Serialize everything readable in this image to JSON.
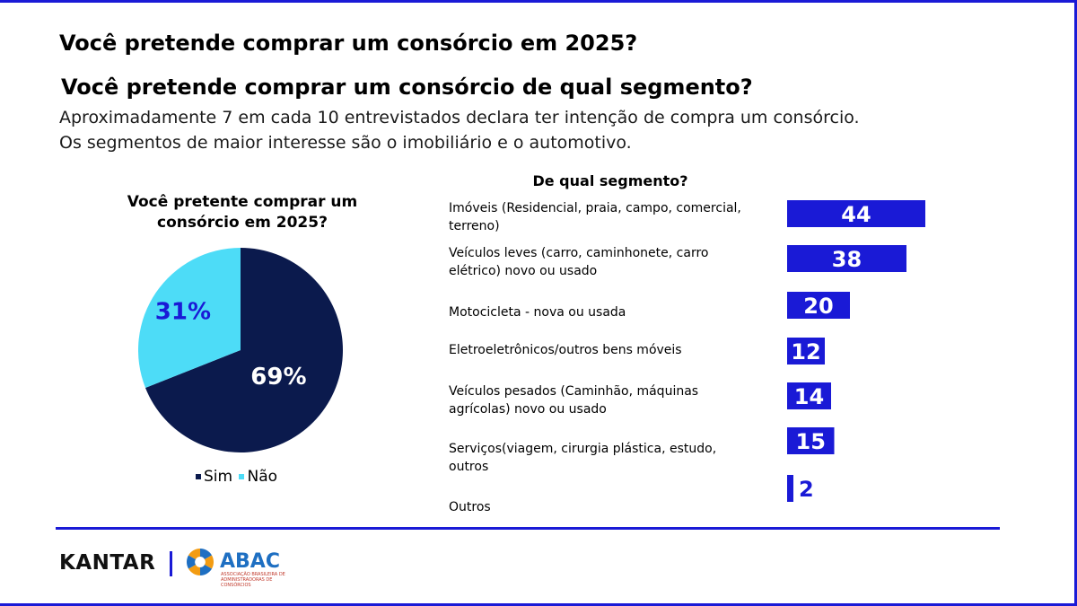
{
  "heading": {
    "title_1": "Você pretende comprar um consórcio em 2025?",
    "title_2": "Você pretende comprar um consórcio de qual segmento?",
    "subtitle_1": "Aproximadamente 7 em cada 10 entrevistados declara ter intenção de compra um consórcio.",
    "subtitle_2": "Os segmentos de maior interesse são o imobiliário e o automotivo."
  },
  "chart_data": [
    {
      "type": "pie",
      "title": "Você pretente comprar um consórcio em 2025?",
      "slices": [
        {
          "label": "Sim",
          "value": 69,
          "display": "69%",
          "color": "#0b1a4d"
        },
        {
          "label": "Não",
          "value": 31,
          "display": "31%",
          "color": "#4ddcf7"
        }
      ],
      "legend": "bottom"
    },
    {
      "type": "bar",
      "orientation": "horizontal",
      "title": "De qual segmento?",
      "categories": [
        [
          "Imóveis (Residencial, praia, campo, comercial,",
          "terreno)"
        ],
        [
          "Veículos leves (carro, caminhonete, carro",
          "elétrico) novo ou usado"
        ],
        [
          "Motocicleta - nova ou usada"
        ],
        [
          "Eletroeletrônicos/outros bens móveis"
        ],
        [
          "Veículos pesados (Caminhão, máquinas",
          "agrícolas) novo ou usado"
        ],
        [
          "Serviços(viagem, cirurgia plástica, estudo,",
          "outros"
        ],
        [
          "Outros"
        ]
      ],
      "values": [
        44,
        38,
        20,
        12,
        14,
        15,
        2
      ],
      "bar_color": "#1a1ad6",
      "label_color": "#ffffff"
    }
  ],
  "footer": {
    "logo_kantar": "KANTAR",
    "logo_abac": "ABAC",
    "logo_abac_sub": "ASSOCIAÇÃO BRASILEIRA DE ADMINISTRADORAS DE CONSÓRCIOS"
  },
  "colors": {
    "accent": "#1a1ad6",
    "dark_navy": "#0b1a4d",
    "cyan": "#4ddcf7"
  }
}
